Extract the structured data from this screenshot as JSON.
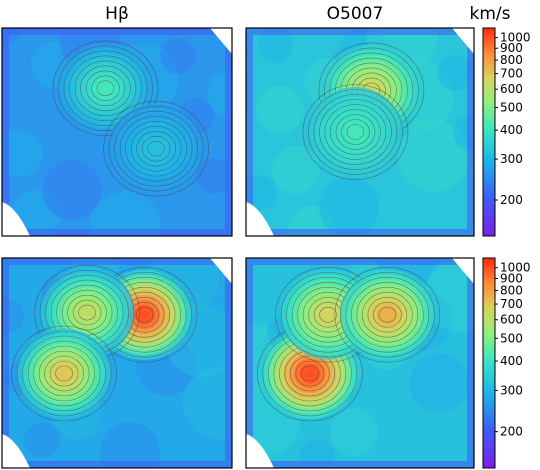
{
  "figure": {
    "column_titles": [
      "Hβ",
      "O5007"
    ],
    "colorbar_label": "km/s"
  },
  "chart_data": {
    "type": "heatmap",
    "colormap": "rainbow (purple-blue-cyan-green-yellow-red)",
    "scale": "log",
    "unit": "km/s",
    "clim": [
      140,
      1100
    ],
    "colorbar_ticks": [
      200,
      300,
      400,
      500,
      600,
      700,
      800,
      900,
      1000
    ],
    "panels": [
      {
        "row": 1,
        "column": "Hβ",
        "background_level": 260,
        "peaks": [
          {
            "x": 0.45,
            "y": 0.29,
            "value": 420
          },
          {
            "x": 0.67,
            "y": 0.58,
            "value": 320
          }
        ]
      },
      {
        "row": 1,
        "column": "O5007",
        "background_level": 330,
        "peaks": [
          {
            "x": 0.55,
            "y": 0.3,
            "value": 650
          },
          {
            "x": 0.48,
            "y": 0.5,
            "value": 420
          }
        ]
      },
      {
        "row": 2,
        "column": "Hβ",
        "background_level": 280,
        "peaks": [
          {
            "x": 0.62,
            "y": 0.27,
            "value": 1000
          },
          {
            "x": 0.37,
            "y": 0.26,
            "value": 620
          },
          {
            "x": 0.27,
            "y": 0.55,
            "value": 700
          }
        ]
      },
      {
        "row": 2,
        "column": "O5007",
        "background_level": 320,
        "peaks": [
          {
            "x": 0.28,
            "y": 0.55,
            "value": 1000
          },
          {
            "x": 0.36,
            "y": 0.27,
            "value": 660
          },
          {
            "x": 0.62,
            "y": 0.27,
            "value": 760
          }
        ]
      }
    ],
    "colorbars": [
      {
        "row": 1,
        "ticks": [
          200,
          300,
          400,
          500,
          600,
          700,
          800,
          900,
          1000
        ]
      },
      {
        "row": 2,
        "ticks": [
          200,
          300,
          400,
          500,
          600,
          700,
          800,
          900,
          1000
        ]
      }
    ]
  }
}
